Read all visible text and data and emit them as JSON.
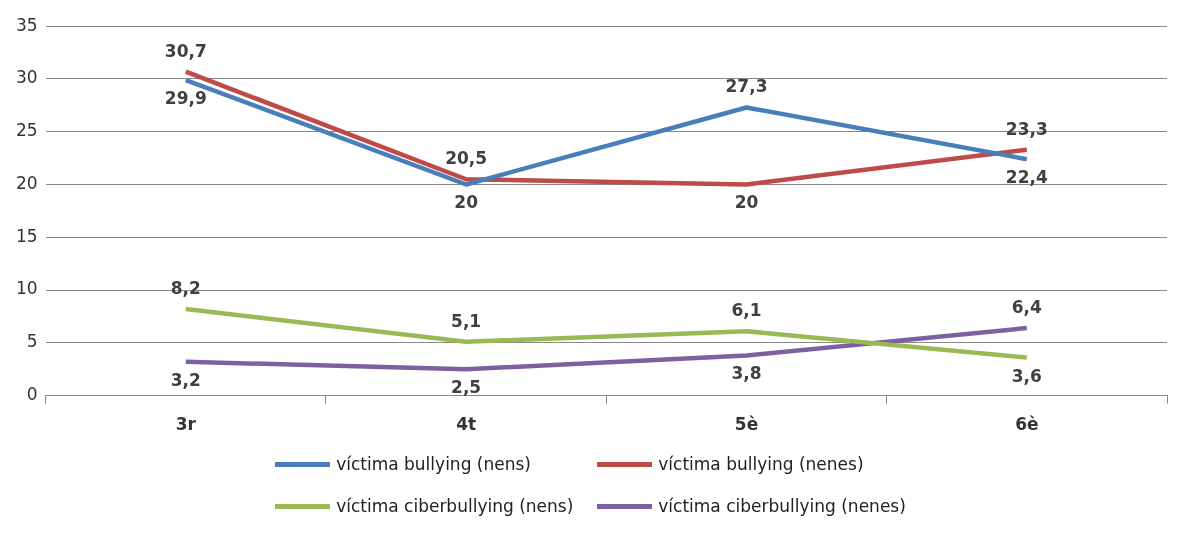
{
  "chart_data": {
    "type": "line",
    "categories": [
      "3r",
      "4t",
      "5è",
      "6è"
    ],
    "series": [
      {
        "name": "víctima bullying (nens)",
        "color": "#4a7ebb",
        "values": [
          29.9,
          20,
          27.3,
          22.4
        ],
        "value_labels": [
          "29,9",
          "20",
          "27,3",
          "22,4"
        ]
      },
      {
        "name": "víctima bullying (nenes)",
        "color": "#be4b48",
        "values": [
          30.7,
          20.5,
          20,
          23.3
        ],
        "value_labels": [
          "30,7",
          "20,5",
          "20",
          "23,3"
        ]
      },
      {
        "name": "víctima ciberbullying (nens)",
        "color": "#98b954",
        "values": [
          8.2,
          5.1,
          6.1,
          3.6
        ],
        "value_labels": [
          "8,2",
          "5,1",
          "6,1",
          "3,6"
        ]
      },
      {
        "name": "víctima ciberbullying (nenes)",
        "color": "#7d60a0",
        "values": [
          3.2,
          2.5,
          3.8,
          6.4
        ],
        "value_labels": [
          "3,2",
          "2,5",
          "3,8",
          "6,4"
        ]
      }
    ],
    "ylim": [
      0,
      35
    ],
    "yticks": [
      0,
      5,
      10,
      15,
      20,
      25,
      30,
      35
    ],
    "grid": "y",
    "legend": "bottom",
    "marker": "none",
    "line_style": "solid"
  }
}
